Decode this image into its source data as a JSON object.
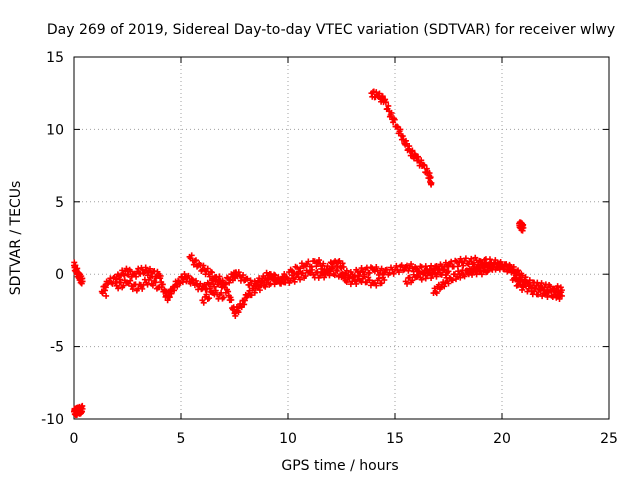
{
  "chart_data": {
    "type": "scatter",
    "title": "Day 269 of 2019, Sidereal Day-to-day VTEC variation (SDTVAR) for receiver wlwy",
    "xlabel": "GPS time / hours",
    "ylabel": "SDTVAR / TECUs",
    "xlim": [
      0,
      25
    ],
    "ylim": [
      -10,
      15
    ],
    "xticks": [
      "0",
      "5",
      "10",
      "15",
      "20",
      "25"
    ],
    "yticks": [
      "-10",
      "-5",
      "0",
      "5",
      "10",
      "15"
    ],
    "grid": true,
    "marker": "+",
    "color": "#ff0000",
    "series": [
      {
        "name": "SDTVAR",
        "x": [
          0.0,
          0.1,
          0.2,
          0.3,
          0.4,
          0.0,
          0.1,
          0.2,
          0.3,
          0.4,
          1.3,
          1.6,
          2.0,
          2.4,
          2.8,
          3.2,
          3.6,
          4.0,
          4.2,
          4.4,
          4.6,
          4.9,
          5.2,
          5.6,
          6.0,
          6.4,
          6.8,
          7.2,
          7.5,
          7.8,
          8.1,
          8.5,
          9.0,
          9.5,
          10.0,
          10.5,
          11.0,
          11.5,
          12.0,
          12.5,
          13.0,
          13.5,
          14.0,
          14.5,
          15.0,
          15.5,
          16.0,
          16.5,
          17.0,
          17.5,
          18.0,
          18.5,
          19.0,
          19.5,
          20.0,
          20.5,
          21.0,
          21.5,
          22.0,
          22.5,
          22.8,
          5.4,
          5.8,
          6.2,
          6.6,
          7.0,
          7.4,
          7.6,
          8.0,
          8.4,
          8.8,
          9.2,
          9.6,
          10.2,
          10.8,
          11.4,
          11.8,
          12.2,
          12.6,
          2.0,
          2.5,
          3.0,
          3.5,
          4.0,
          1.5,
          6.0,
          6.5,
          7.0,
          16.8,
          17.2,
          17.6,
          18.0,
          18.4,
          18.8,
          19.2,
          19.6,
          20.0,
          20.4,
          20.8,
          21.2,
          21.6,
          22.0,
          22.4,
          22.8,
          13.9,
          14.2,
          14.5,
          14.8,
          15.1,
          15.4,
          15.7,
          16.0,
          16.3,
          16.6,
          16.7,
          20.8,
          20.9,
          21.0,
          12.5,
          13.0,
          13.5,
          14.0,
          14.5,
          15.5,
          16.0,
          16.5,
          17.0,
          17.5,
          18.5,
          19.0,
          19.5,
          20.5,
          21.0
        ],
        "y": [
          0.6,
          0.3,
          0.0,
          -0.3,
          -0.5,
          -9.5,
          -9.5,
          -9.4,
          -9.4,
          -9.3,
          -1.2,
          -0.6,
          -0.3,
          0.2,
          0.0,
          0.3,
          0.1,
          -0.1,
          -1.2,
          -1.6,
          -1.0,
          -0.5,
          -0.2,
          -0.6,
          -1.0,
          -0.7,
          -0.5,
          -1.2,
          -2.7,
          -2.2,
          -1.5,
          -1.0,
          -0.6,
          -0.4,
          -0.4,
          -0.2,
          0.1,
          -0.1,
          0.2,
          0.0,
          0.0,
          0.2,
          0.3,
          0.1,
          0.3,
          0.5,
          0.4,
          0.3,
          0.4,
          0.6,
          0.8,
          0.9,
          0.9,
          0.8,
          0.6,
          0.2,
          -0.8,
          -1.2,
          -1.3,
          -1.4,
          -1.5,
          1.2,
          0.6,
          0.2,
          -0.2,
          -0.6,
          -0.2,
          0.0,
          -0.4,
          -0.8,
          -0.3,
          0.0,
          -0.5,
          0.2,
          0.6,
          0.8,
          0.3,
          0.9,
          0.5,
          -0.8,
          -0.6,
          -1.0,
          -0.4,
          -0.9,
          -1.5,
          -1.8,
          -1.3,
          -1.6,
          -1.3,
          -0.7,
          -0.3,
          0.0,
          0.1,
          0.3,
          0.5,
          0.5,
          0.6,
          0.4,
          0.0,
          -0.6,
          -0.8,
          -0.9,
          -1.0,
          -1.1,
          12.5,
          12.3,
          12.0,
          11.0,
          10.2,
          9.3,
          8.5,
          8.0,
          7.5,
          6.8,
          6.3,
          3.5,
          3.3,
          3.2,
          -0.2,
          -0.5,
          -0.3,
          -0.6,
          -0.4,
          -0.5,
          -0.2,
          -0.1,
          0.1,
          0.2,
          0.3,
          0.2,
          0.4,
          -0.4,
          -0.9
        ]
      }
    ]
  }
}
